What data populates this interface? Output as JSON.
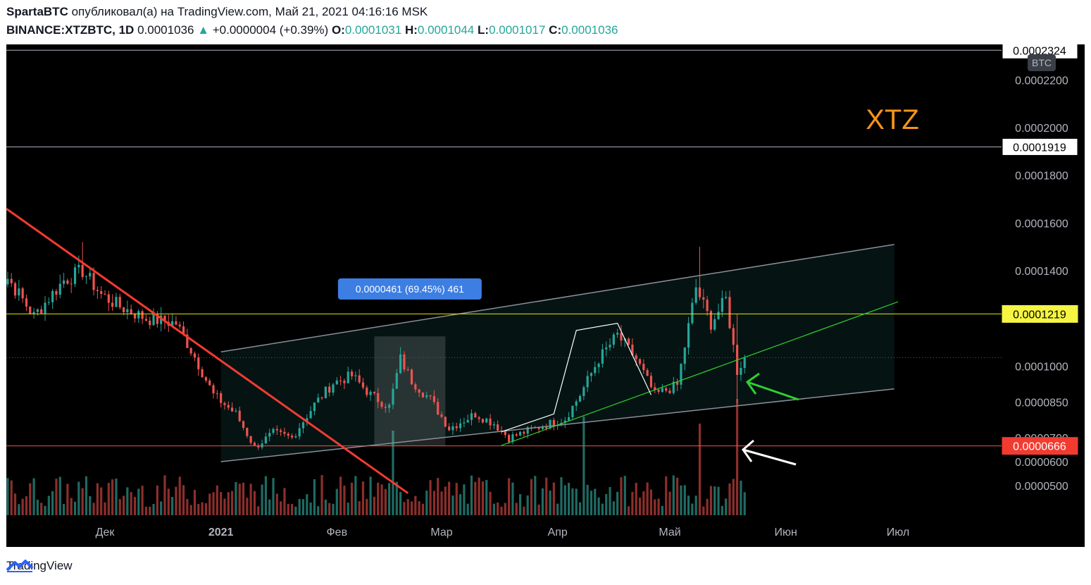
{
  "header": {
    "author": "SpartaBTC",
    "published_text": "опубликовал(а) на TradingView.com, Май 21, 2021 04:16:16 MSK",
    "symbol": "BINANCE:XTZBTC, 1D",
    "last": "0.0001036",
    "change_arrow": "▲",
    "change": "+0.0000004 (+0.39%)",
    "o_label": "O:",
    "o": "0.0001031",
    "h_label": "H:",
    "h": "0.0001044",
    "l_label": "L:",
    "l": "0.0001017",
    "c_label": "C:",
    "c": "0.0001036"
  },
  "footer": {
    "brand": "TradingView",
    "brand_icon": "tradingview-logo-icon"
  },
  "colors": {
    "up": "#26a69a",
    "down": "#ef5350",
    "background": "#000000",
    "axis_text": "#b2b5be",
    "title": "#f7931a"
  },
  "chart_data": {
    "type": "candlestick",
    "title": "XTZ",
    "currency_badge": "BTC",
    "y_ticks": [
      "0.0002200",
      "0.0002000",
      "0.0001800",
      "0.0001600",
      "0.0001400",
      "0.0001200",
      "0.0001000",
      "0.0000850",
      "0.0000700",
      "0.0000600",
      "0.0000500"
    ],
    "y_tick_values": [
      0.00022,
      0.0002,
      0.00018,
      0.00016,
      0.00014,
      0.00012,
      0.0001,
      8.5e-05,
      7e-05,
      6e-05,
      5e-05
    ],
    "x_ticks": [
      "Дек",
      "2021",
      "Фев",
      "Мар",
      "Апр",
      "Май",
      "Июн",
      "Июл"
    ],
    "x_tick_dates": [
      "2020-12-01",
      "2021-01-01",
      "2021-02-01",
      "2021-03-01",
      "2021-04-01",
      "2021-05-01",
      "2021-06-01",
      "2021-07-01"
    ],
    "start_date": "2020-11-01",
    "price_labels": [
      {
        "text": "0.0002324",
        "value": 0.0002324,
        "style": "white"
      },
      {
        "text": "0.0001919",
        "value": 0.0001919,
        "style": "white"
      },
      {
        "text": "0.0001219",
        "value": 0.0001219,
        "style": "yellow"
      },
      {
        "text": "0.0000666",
        "value": 6.66e-05,
        "style": "red"
      }
    ],
    "measure_label": "0.0000461 (69.45%) 461",
    "series": [
      {
        "name": "XTZBTC",
        "close_anchors": [
          [
            "2020-11-01",
            0.000133
          ],
          [
            "2020-11-05",
            0.000137
          ],
          [
            "2020-11-12",
            0.000121
          ],
          [
            "2020-11-20",
            0.000136
          ],
          [
            "2020-11-25",
            0.00014
          ],
          [
            "2020-11-30",
            0.00013
          ],
          [
            "2020-12-05",
            0.000125
          ],
          [
            "2020-12-12",
            0.00012
          ],
          [
            "2020-12-20",
            0.000118
          ],
          [
            "2020-12-25",
            0.000104
          ],
          [
            "2020-12-30",
            8.8e-05
          ],
          [
            "2021-01-05",
            8e-05
          ],
          [
            "2021-01-10",
            6.6e-05
          ],
          [
            "2021-01-15",
            7.2e-05
          ],
          [
            "2021-01-20",
            7e-05
          ],
          [
            "2021-01-26",
            8.4e-05
          ],
          [
            "2021-01-31",
            9.3e-05
          ],
          [
            "2021-02-05",
            9.6e-05
          ],
          [
            "2021-02-10",
            8.8e-05
          ],
          [
            "2021-02-15",
            8.3e-05
          ],
          [
            "2021-02-18",
            0.000103
          ],
          [
            "2021-02-21",
            9.4e-05
          ],
          [
            "2021-02-26",
            8.6e-05
          ],
          [
            "2021-03-03",
            7.4e-05
          ],
          [
            "2021-03-10",
            8e-05
          ],
          [
            "2021-03-15",
            7.6e-05
          ],
          [
            "2021-03-19",
            7e-05
          ],
          [
            "2021-03-26",
            7.4e-05
          ],
          [
            "2021-04-03",
            7.8e-05
          ],
          [
            "2021-04-07",
            8.8e-05
          ],
          [
            "2021-04-12",
            0.000103
          ],
          [
            "2021-04-17",
            0.000113
          ],
          [
            "2021-04-22",
            0.000103
          ],
          [
            "2021-04-27",
            8.8e-05
          ],
          [
            "2021-05-03",
            9.2e-05
          ],
          [
            "2021-05-08",
            0.000133
          ],
          [
            "2021-05-12",
            0.000118
          ],
          [
            "2021-05-16",
            0.000128
          ],
          [
            "2021-05-19",
            9.8e-05
          ],
          [
            "2021-05-21",
            0.0001036
          ]
        ]
      }
    ],
    "annotations": [
      "red downtrend line",
      "rising channel",
      "green support line",
      "white wedge",
      "green arrow",
      "white arrow"
    ]
  }
}
